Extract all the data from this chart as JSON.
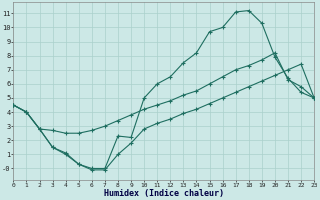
{
  "xlabel": "Humidex (Indice chaleur)",
  "bg_color": "#cce8e6",
  "grid_color": "#aad0cc",
  "line_color": "#1e6e60",
  "xlim": [
    0,
    23
  ],
  "ylim": [
    -0.8,
    11.8
  ],
  "yticks": [
    0,
    1,
    2,
    3,
    4,
    5,
    6,
    7,
    8,
    9,
    10,
    11
  ],
  "xticks": [
    0,
    1,
    2,
    3,
    4,
    5,
    6,
    7,
    8,
    9,
    10,
    11,
    12,
    13,
    14,
    15,
    16,
    17,
    18,
    19,
    20,
    21,
    22,
    23
  ],
  "line1_x": [
    0,
    1,
    2,
    3,
    4,
    5,
    6,
    7,
    8,
    9,
    10,
    11,
    12,
    13,
    14,
    15,
    16,
    17,
    18,
    19,
    20,
    21,
    22,
    23
  ],
  "line1_y": [
    4.5,
    4.0,
    2.8,
    1.5,
    1.1,
    0.3,
    0.0,
    0.0,
    2.3,
    2.2,
    5.0,
    6.0,
    6.5,
    7.5,
    8.2,
    9.7,
    10.0,
    11.1,
    11.2,
    10.3,
    7.9,
    6.4,
    5.4,
    5.0
  ],
  "line2_x": [
    0,
    1,
    2,
    3,
    4,
    5,
    6,
    7,
    8,
    9,
    10,
    11,
    12,
    13,
    14,
    15,
    16,
    17,
    18,
    19,
    20,
    21,
    22,
    23
  ],
  "line2_y": [
    4.5,
    4.0,
    2.8,
    2.7,
    2.5,
    2.5,
    2.7,
    3.0,
    3.4,
    3.8,
    4.2,
    4.5,
    4.8,
    5.2,
    5.5,
    6.0,
    6.5,
    7.0,
    7.3,
    7.7,
    8.2,
    6.3,
    5.8,
    5.0
  ],
  "line3_x": [
    0,
    1,
    2,
    3,
    4,
    5,
    6,
    7,
    8,
    9,
    10,
    11,
    12,
    13,
    14,
    15,
    16,
    17,
    18,
    19,
    20,
    21,
    22,
    23
  ],
  "line3_y": [
    4.5,
    4.0,
    2.8,
    1.5,
    1.0,
    0.3,
    -0.1,
    -0.1,
    1.0,
    1.8,
    2.8,
    3.2,
    3.5,
    3.9,
    4.2,
    4.6,
    5.0,
    5.4,
    5.8,
    6.2,
    6.6,
    7.0,
    7.4,
    5.0
  ]
}
